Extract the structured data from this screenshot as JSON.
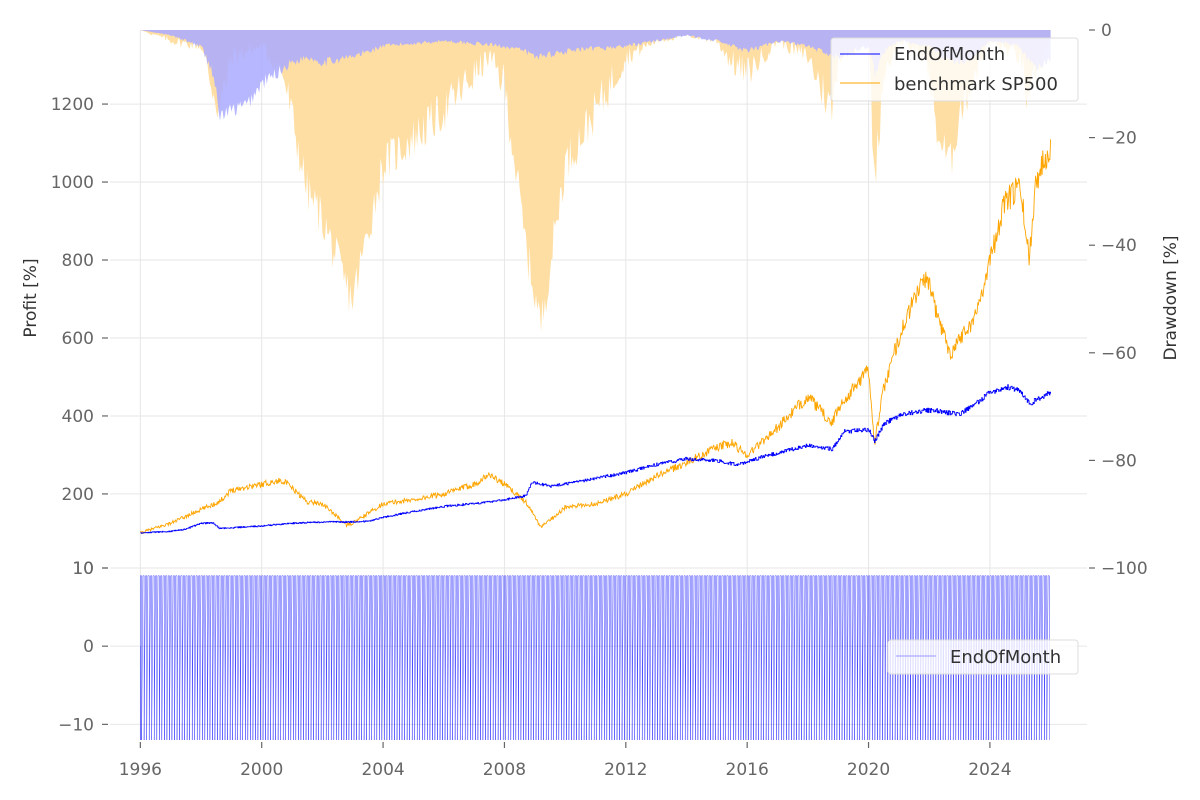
{
  "chart_data": [
    {
      "type": "line",
      "title": "",
      "xlabel": "",
      "ylabel": "Profit [%]",
      "ylabel_right": "Drawdown [%]",
      "xlim": [
        1995.0,
        2027.2
      ],
      "ylim": [
        10,
        1390
      ],
      "ylim_right": [
        -100,
        0
      ],
      "x_ticks": [
        "1996",
        "2000",
        "2004",
        "2008",
        "2012",
        "2016",
        "2020",
        "2024"
      ],
      "y_ticks": [
        "10",
        "200",
        "400",
        "600",
        "800",
        "1000",
        "1200"
      ],
      "y_ticks_right": [
        "0",
        "−20",
        "−40",
        "−60",
        "−80",
        "−100"
      ],
      "grid": true,
      "legend_position": "top-right",
      "series": [
        {
          "name": "EndOfMonth",
          "color": "#0000ff",
          "x": [
            1996.0,
            1997.0,
            1997.5,
            1998.0,
            1998.4,
            1998.6,
            1999.0,
            2000.0,
            2001.0,
            2002.0,
            2002.8,
            2003.5,
            2004.0,
            2005.0,
            2006.0,
            2007.0,
            2008.0,
            2008.7,
            2008.9,
            2009.5,
            2010.0,
            2011.0,
            2012.0,
            2013.0,
            2014.0,
            2015.0,
            2015.7,
            2016.5,
            2017.0,
            2018.0,
            2018.8,
            2019.2,
            2020.0,
            2020.2,
            2020.5,
            2021.0,
            2021.5,
            2022.0,
            2022.5,
            2023.0,
            2023.5,
            2024.0,
            2024.5,
            2025.0,
            2025.3,
            2025.6,
            2026.0
          ],
          "values": [
            100,
            104,
            110,
            125,
            125,
            112,
            113,
            118,
            125,
            128,
            128,
            130,
            140,
            155,
            168,
            175,
            185,
            195,
            230,
            220,
            225,
            240,
            255,
            275,
            290,
            285,
            275,
            295,
            305,
            325,
            315,
            360,
            365,
            335,
            380,
            400,
            410,
            415,
            410,
            405,
            430,
            460,
            475,
            465,
            430,
            445,
            460
          ]
        },
        {
          "name": "benchmark SP500",
          "color": "#ffa500",
          "x": [
            1996.0,
            1997.0,
            1998.0,
            1998.6,
            1999.0,
            2000.0,
            2000.7,
            2001.5,
            2002.0,
            2002.8,
            2003.0,
            2004.0,
            2005.0,
            2006.0,
            2007.0,
            2007.5,
            2008.0,
            2008.7,
            2009.2,
            2010.0,
            2011.0,
            2012.0,
            2013.0,
            2014.0,
            2015.0,
            2015.5,
            2016.0,
            2017.0,
            2018.0,
            2018.8,
            2019.0,
            2020.0,
            2020.2,
            2020.5,
            2021.0,
            2021.5,
            2021.9,
            2022.3,
            2022.7,
            2023.0,
            2023.5,
            2024.0,
            2024.5,
            2025.0,
            2025.3,
            2025.5,
            2026.0
          ],
          "values": [
            100,
            125,
            160,
            180,
            210,
            225,
            235,
            180,
            175,
            120,
            125,
            175,
            185,
            200,
            225,
            250,
            225,
            180,
            115,
            165,
            175,
            200,
            245,
            280,
            320,
            330,
            300,
            370,
            450,
            380,
            420,
            520,
            330,
            470,
            600,
            700,
            760,
            650,
            560,
            600,
            650,
            800,
            950,
            990,
            800,
            1000,
            1100
          ]
        }
      ]
    },
    {
      "type": "line",
      "title": "",
      "xlabel": "",
      "ylabel": "",
      "ylim": [
        -12,
        10
      ],
      "y_ticks": [
        "−10",
        "0",
        "10"
      ],
      "x_ticks": [
        "1996",
        "2000",
        "2004",
        "2008",
        "2012",
        "2016",
        "2020",
        "2024"
      ],
      "grid": true,
      "legend_position": "center-right",
      "description": "monthly position signal alternating between approximately +9 and -12",
      "series": [
        {
          "name": "EndOfMonth",
          "color": "#0000ff",
          "high": 9,
          "low": -12,
          "x_start": 1996.0,
          "x_end": 2026.0,
          "period_months": 1
        }
      ]
    }
  ],
  "drawdown": {
    "EndOfMonth_color": "#aaaaff",
    "SP500_color": "#ffdea3",
    "overlap_color": "#c8a6ad",
    "EndOfMonth_x": [
      1996.0,
      1997.0,
      1997.5,
      1998.0,
      1998.4,
      1998.6,
      1999.0,
      1999.5,
      2000.0,
      2001.0,
      2001.5,
      2002.0,
      2003.0,
      2004.0,
      2006.0,
      2008.0,
      2008.7,
      2009.0,
      2010.0,
      2012.0,
      2013.0,
      2014.0,
      2015.0,
      2015.5,
      2016.0,
      2017.0,
      2018.0,
      2018.8,
      2019.0,
      2020.0,
      2020.2,
      2020.5,
      2021.0,
      2022.0,
      2022.5,
      2023.0,
      2023.5,
      2024.0,
      2025.0,
      2025.3,
      2025.6,
      2026.0
    ],
    "EndOfMonth_values": [
      0,
      -1,
      -2,
      -3,
      -8,
      -16,
      -15,
      -14,
      -10,
      -6,
      -5,
      -6,
      -5,
      -3,
      -2,
      -3,
      -4,
      -5,
      -4,
      -3,
      -2,
      -1,
      -2,
      -3,
      -4,
      -2,
      -3,
      -5,
      -5,
      -3,
      -8,
      -4,
      -2,
      -3,
      -5,
      -6,
      -5,
      -2,
      -3,
      -6,
      -7,
      -5
    ],
    "SP500_x": [
      1996.0,
      1997.0,
      1998.0,
      1998.6,
      1999.0,
      2000.0,
      2000.7,
      2001.5,
      2002.0,
      2002.8,
      2003.0,
      2004.0,
      2006.0,
      2007.5,
      2008.0,
      2008.7,
      2009.2,
      2010.0,
      2011.0,
      2012.0,
      2013.0,
      2014.0,
      2015.0,
      2015.5,
      2016.0,
      2017.0,
      2018.0,
      2018.8,
      2019.0,
      2020.0,
      2020.2,
      2020.5,
      2021.0,
      2021.9,
      2022.3,
      2022.7,
      2023.0,
      2023.5,
      2024.0,
      2025.0,
      2025.3,
      2025.5,
      2026.0
    ],
    "SP500_values": [
      0,
      -2,
      -3,
      -15,
      -5,
      -3,
      -8,
      -30,
      -35,
      -48,
      -50,
      -25,
      -15,
      -5,
      -10,
      -40,
      -55,
      -25,
      -15,
      -5,
      -2,
      -1,
      -2,
      -6,
      -8,
      -2,
      -5,
      -15,
      -5,
      -2,
      -28,
      -8,
      -2,
      -5,
      -20,
      -25,
      -15,
      -8,
      -2,
      -5,
      -15,
      -8,
      -2
    ]
  },
  "legends": {
    "top": [
      "EndOfMonth",
      "benchmark SP500"
    ],
    "bottom": [
      "EndOfMonth"
    ]
  }
}
